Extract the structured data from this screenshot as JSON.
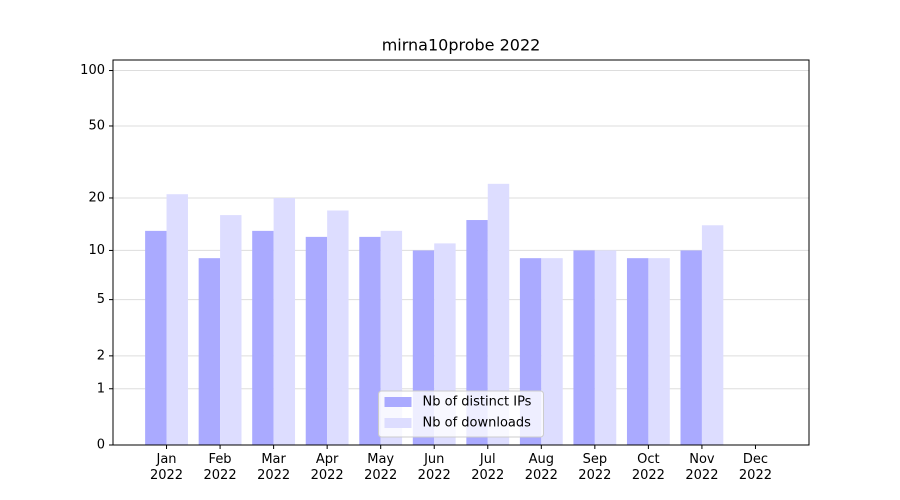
{
  "chart_data": {
    "type": "bar",
    "title": "mirna10probe 2022",
    "categories": [
      "Jan\n2022",
      "Feb\n2022",
      "Mar\n2022",
      "Apr\n2022",
      "May\n2022",
      "Jun\n2022",
      "Jul\n2022",
      "Aug\n2022",
      "Sep\n2022",
      "Oct\n2022",
      "Nov\n2022",
      "Dec\n2022"
    ],
    "series": [
      {
        "name": "Nb of distinct IPs",
        "color": "#aaaaff",
        "values": [
          13,
          9,
          13,
          12,
          12,
          10,
          15,
          9,
          10,
          9,
          10,
          null
        ]
      },
      {
        "name": "Nb of downloads",
        "color": "#ddddff",
        "values": [
          21,
          16,
          20,
          17,
          13,
          11,
          24,
          9,
          10,
          9,
          14,
          null
        ]
      }
    ],
    "yscale": "log1p",
    "ylim": [
      0,
      114
    ],
    "yticks": [
      0,
      1,
      2,
      5,
      10,
      20,
      50,
      100
    ],
    "grid": true,
    "legend": "lower center"
  }
}
